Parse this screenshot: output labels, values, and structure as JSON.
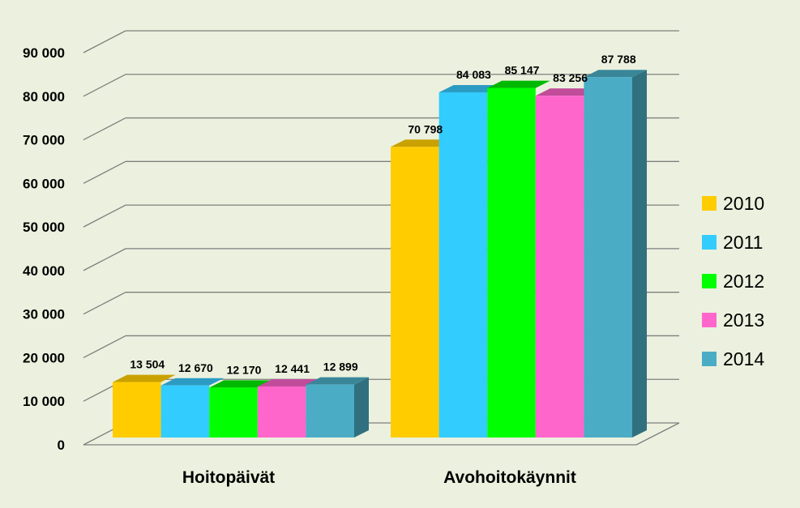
{
  "chart_data": {
    "type": "bar",
    "categories": [
      "Hoitopäivät",
      "Avohoitokäynnit"
    ],
    "series": [
      {
        "name": "2010",
        "values": [
          13504,
          70798
        ],
        "labels": [
          "13 504",
          "70 798"
        ],
        "color": "#ffcc00",
        "top_color": "#c9a100",
        "side_color": "#b38f00"
      },
      {
        "name": "2011",
        "values": [
          12670,
          84083
        ],
        "labels": [
          "12 670",
          "84 083"
        ],
        "color": "#33ccff",
        "top_color": "#2b9bc4",
        "side_color": "#2388ad"
      },
      {
        "name": "2012",
        "values": [
          12170,
          85147
        ],
        "labels": [
          "12 170",
          "85 147"
        ],
        "color": "#00ff00",
        "top_color": "#00b800",
        "side_color": "#00a000"
      },
      {
        "name": "2013",
        "values": [
          12441,
          83256
        ],
        "labels": [
          "12 441",
          "83 256"
        ],
        "color": "#ff66cc",
        "top_color": "#c14c9a",
        "side_color": "#a84386"
      },
      {
        "name": "2014",
        "values": [
          12899,
          87788
        ],
        "labels": [
          "12 899",
          "87 788"
        ],
        "color": "#4bacc6",
        "top_color": "#3a8699",
        "side_color": "#31707f"
      }
    ],
    "ylim": [
      0,
      90000
    ],
    "yticks": [
      0,
      10000,
      20000,
      30000,
      40000,
      50000,
      60000,
      70000,
      80000,
      90000
    ],
    "ytick_labels": [
      "0",
      "10 000",
      "20 000",
      "30 000",
      "40 000",
      "50 000",
      "60 000",
      "70 000",
      "80 000",
      "90 000"
    ],
    "grid": true,
    "three_d": true,
    "legend_position": "right",
    "title": "",
    "xlabel": "",
    "ylabel": "",
    "colors": {
      "background": "#ebf1de",
      "grid": "#7f7f7f"
    }
  }
}
